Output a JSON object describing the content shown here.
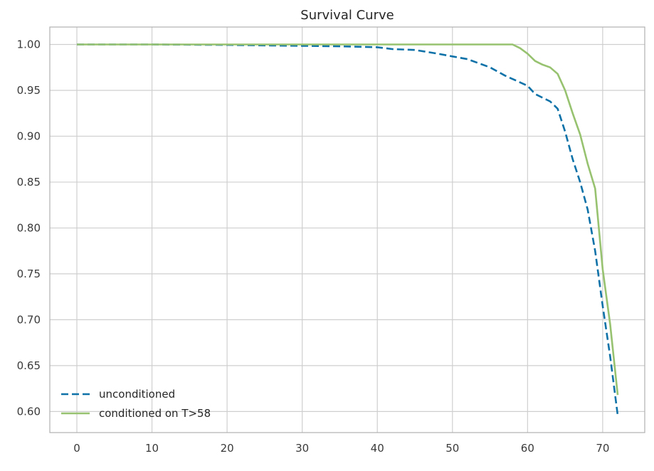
{
  "chart_data": {
    "type": "line",
    "title": "Survival Curve",
    "xlabel": "",
    "ylabel": "",
    "xlim": [
      -3.6,
      75.6
    ],
    "ylim": [
      0.577,
      1.019
    ],
    "x_ticks": [
      0,
      10,
      20,
      30,
      40,
      50,
      60,
      70
    ],
    "x_tick_labels": [
      "0",
      "10",
      "20",
      "30",
      "40",
      "50",
      "60",
      "70"
    ],
    "y_ticks": [
      0.6,
      0.65,
      0.7,
      0.75,
      0.8,
      0.85,
      0.9,
      0.95,
      1.0
    ],
    "y_tick_labels": [
      "0.60",
      "0.65",
      "0.70",
      "0.75",
      "0.80",
      "0.85",
      "0.90",
      "0.95",
      "1.00"
    ],
    "grid": true,
    "legend_position": "lower-left",
    "series": [
      {
        "name": "unconditioned",
        "color": "#0e72a8",
        "dash": "dashed",
        "x": [
          0,
          10,
          20,
          25,
          30,
          35,
          40,
          42,
          45,
          48,
          50,
          52,
          55,
          57,
          60,
          61,
          62,
          63,
          64,
          65,
          66,
          67,
          68,
          69,
          70,
          71,
          72
        ],
        "y": [
          1.0,
          1.0,
          0.9995,
          0.999,
          0.9985,
          0.998,
          0.997,
          0.995,
          0.994,
          0.99,
          0.987,
          0.984,
          0.975,
          0.966,
          0.955,
          0.946,
          0.942,
          0.938,
          0.93,
          0.905,
          0.875,
          0.85,
          0.82,
          0.775,
          0.715,
          0.66,
          0.596
        ]
      },
      {
        "name": "conditioned on T>58",
        "color": "#97c26f",
        "dash": "solid",
        "x": [
          0,
          10,
          20,
          30,
          40,
          50,
          55,
          58,
          59,
          60,
          61,
          62,
          63,
          64,
          65,
          66,
          67,
          68,
          69,
          70,
          71,
          72
        ],
        "y": [
          1.0,
          1.0,
          1.0,
          1.0,
          1.0,
          1.0,
          1.0,
          1.0,
          0.996,
          0.99,
          0.982,
          0.978,
          0.975,
          0.968,
          0.95,
          0.925,
          0.902,
          0.87,
          0.843,
          0.755,
          0.695,
          0.618
        ]
      }
    ]
  }
}
